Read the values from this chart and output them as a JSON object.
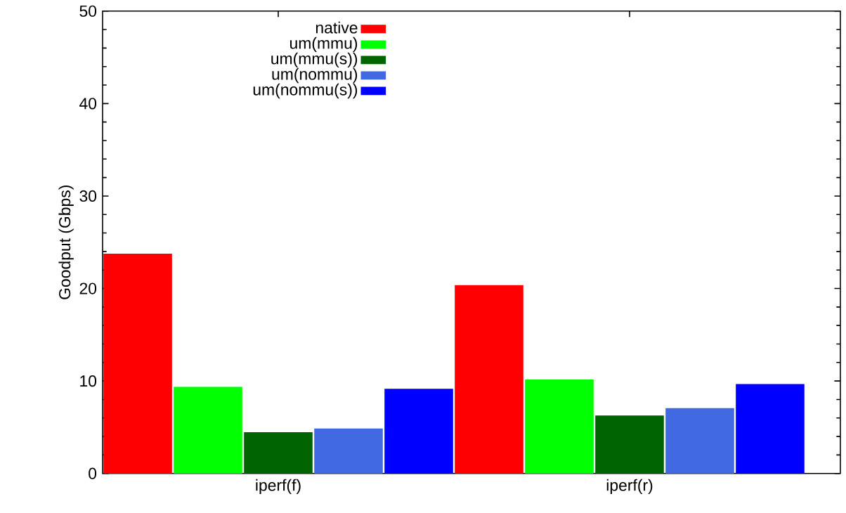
{
  "chart_data": {
    "type": "bar",
    "ylabel": "Goodput (Gbps)",
    "categories": [
      "iperf(f)",
      "iperf(r)"
    ],
    "series": [
      {
        "name": "native",
        "color": "#ff0000",
        "values": [
          23.7,
          20.3
        ]
      },
      {
        "name": "um(mmu)",
        "color": "#00ff00",
        "values": [
          9.3,
          10.1
        ]
      },
      {
        "name": "um(mmu(s))",
        "color": "#006400",
        "values": [
          4.4,
          6.2
        ]
      },
      {
        "name": "um(nommu)",
        "color": "#4169e1",
        "values": [
          4.8,
          7.0
        ]
      },
      {
        "name": "um(nommu(s))",
        "color": "#0000ff",
        "values": [
          9.1,
          9.6
        ]
      }
    ],
    "ylim": [
      0,
      50
    ],
    "yticks": [
      0,
      10,
      20,
      30,
      40,
      50
    ],
    "legend": "top left",
    "grid": false
  }
}
